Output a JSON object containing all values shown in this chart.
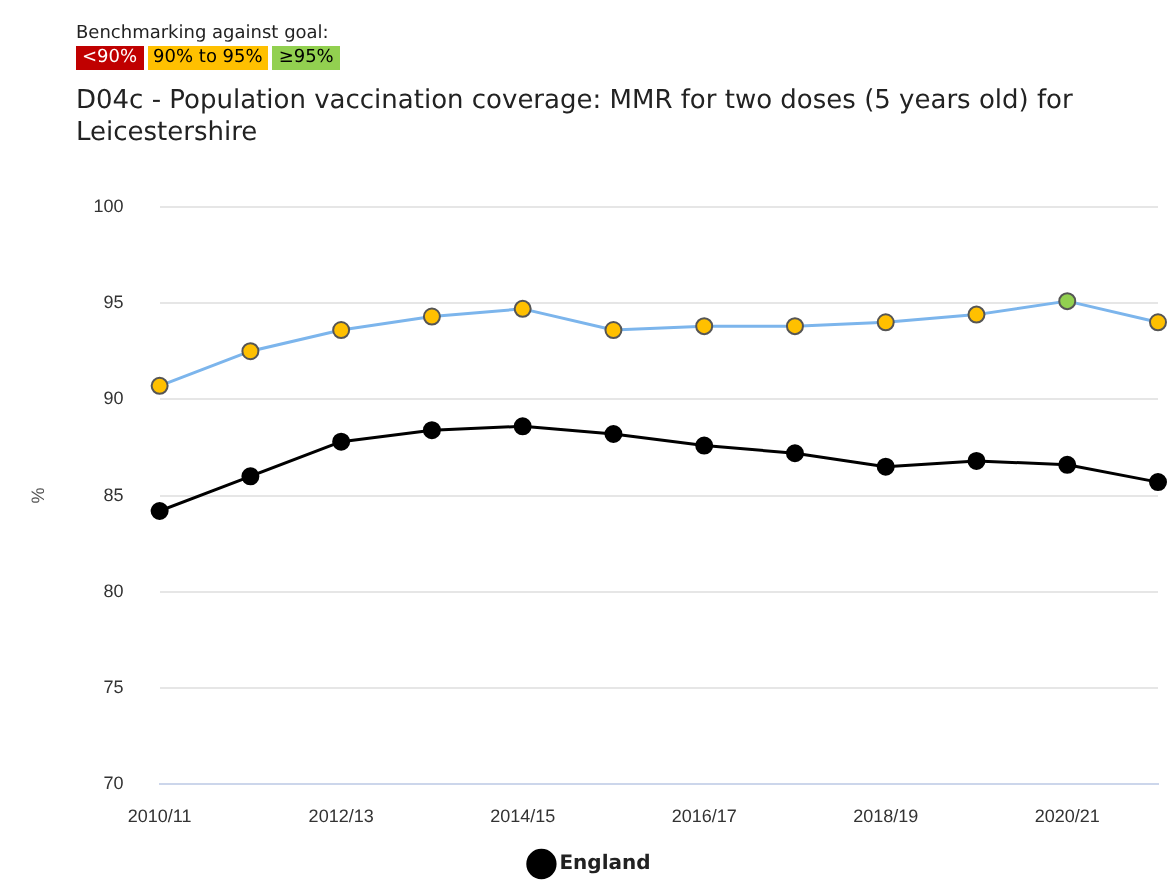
{
  "chart_data": {
    "type": "line",
    "title": "D04c - Population vaccination coverage: MMR for two doses (5 years old) for Leicestershire",
    "ylabel": "%",
    "annotations": [
      "Benchmarking against goal:",
      "<90%",
      "90% to 95%",
      "≥95%"
    ],
    "categories": [
      "2010/11",
      null,
      "2012/13",
      null,
      "2014/15",
      null,
      "2016/17",
      null,
      "2018/19",
      null,
      "2020/21",
      null
    ],
    "series": [
      {
        "color": "#7cb5ec",
        "colors": [
          "#ffc000",
          "#ffc000",
          "#ffc000",
          "#ffc000",
          "#ffc000",
          "#ffc000",
          "#ffc000",
          "#ffc000",
          "#ffc000",
          "#ffc000",
          "#92d050",
          "#ffc000"
        ],
        "values": [
          90.7,
          92.5,
          93.6,
          94.3,
          94.7,
          93.6,
          93.8,
          93.8,
          94.0,
          94.4,
          95.1,
          94.0
        ]
      },
      {
        "name": "England",
        "color": "#000000",
        "values": [
          84.2,
          86.0,
          87.8,
          88.4,
          88.6,
          88.2,
          87.6,
          87.2,
          86.5,
          86.8,
          86.6,
          85.7
        ]
      }
    ],
    "ylim": [
      70,
      100
    ],
    "yticks": [
      70,
      75,
      80,
      85,
      90,
      95,
      100
    ],
    "grid": "y",
    "legend": "bottom",
    "marker": "circle",
    "line_style": "solid"
  }
}
